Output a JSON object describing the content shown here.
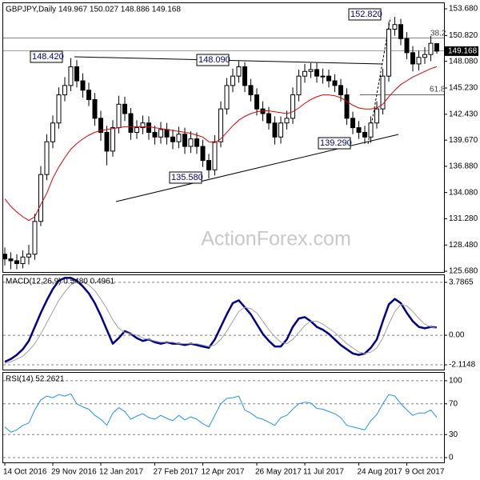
{
  "chart_data": [
    {
      "type": "candlestick",
      "title": "GBPJPY,Daily  149.967 150.027 148.886 149.168",
      "open": [
        127.5,
        127.0,
        126.8,
        126.5,
        127.2,
        127.5,
        131,
        136,
        139.5,
        141.5,
        144.5,
        145.5,
        147.5,
        146,
        145,
        144,
        142,
        140.5,
        138.5,
        141,
        143.5,
        142.5,
        140.5,
        141,
        141.5,
        140.5,
        140,
        140.8,
        140,
        139.5,
        140.3,
        139,
        139.8,
        139,
        137.5,
        136.5,
        139.5,
        143,
        145.5,
        146.5,
        147.5,
        145.5,
        144.5,
        143,
        142.5,
        141.5,
        140,
        141.5,
        142,
        144.5,
        146.5,
        147,
        147.2,
        146.5,
        146.5,
        146,
        145.5,
        144.5,
        142,
        141,
        140.5,
        140,
        141.5,
        143,
        146.5,
        151.5,
        152,
        150.5,
        149,
        147.8,
        148.5,
        148.8,
        149.967
      ],
      "high": [
        128.2,
        127.7,
        127.5,
        127.9,
        128.5,
        131.8,
        136.9,
        140.3,
        142.3,
        145.3,
        146.4,
        148.42,
        148.2,
        146.8,
        145.8,
        144.7,
        142.8,
        141.2,
        141.8,
        144.4,
        144.3,
        143.1,
        141.8,
        142.3,
        142.2,
        141.2,
        141.6,
        141.5,
        140.8,
        141.1,
        141.0,
        140.6,
        140.5,
        139.7,
        138.2,
        140.2,
        143.8,
        146.3,
        147.3,
        148.09,
        148.0,
        146.2,
        145.2,
        143.8,
        143.2,
        142.2,
        142.2,
        142.8,
        145.3,
        147.2,
        147.8,
        147.9,
        147.9,
        147.3,
        147.2,
        146.7,
        146.2,
        145.2,
        142.7,
        141.7,
        141.2,
        142.2,
        143.8,
        147.3,
        152.3,
        152.82,
        152.6,
        151.2,
        149.7,
        149.2,
        149.6,
        150.8,
        150.027
      ],
      "low": [
        126.3,
        125.9,
        125.9,
        126.0,
        126.4,
        126.9,
        130.5,
        135.4,
        138.8,
        140.9,
        143.8,
        144.9,
        145.3,
        144.2,
        143.3,
        141.2,
        139.6,
        137.0,
        137.9,
        140.4,
        141.7,
        139.7,
        139.8,
        140.3,
        139.7,
        139.2,
        139.3,
        139.2,
        138.7,
        138.8,
        138.2,
        138.3,
        138.2,
        136.8,
        135.58,
        135.9,
        138.9,
        142.4,
        144.8,
        145.8,
        144.8,
        143.8,
        142.3,
        141.7,
        140.8,
        139.2,
        139.3,
        140.8,
        141.4,
        143.8,
        145.8,
        146.3,
        145.8,
        145.7,
        145.3,
        144.8,
        143.8,
        141.3,
        140.3,
        139.8,
        139.29,
        139.4,
        140.9,
        142.4,
        145.9,
        150.8,
        149.8,
        148.3,
        147.0,
        147.1,
        147.8,
        148.1,
        148.886
      ],
      "close": [
        127.0,
        126.8,
        126.5,
        127.2,
        127.5,
        131,
        136,
        139.5,
        141.5,
        144.5,
        145.5,
        147.5,
        146,
        145,
        144,
        142,
        140.5,
        138.5,
        141,
        143.5,
        142.5,
        140.5,
        141,
        141.5,
        140.5,
        140,
        140.8,
        140,
        139.5,
        140.3,
        139,
        139.8,
        139,
        137.5,
        136.5,
        139.5,
        143,
        145.5,
        146.5,
        147.5,
        145.5,
        144.5,
        143,
        142.5,
        141.5,
        140,
        141.5,
        142,
        144.5,
        146.5,
        147,
        147.2,
        146.5,
        146.5,
        146,
        145.5,
        144.5,
        142,
        141,
        140.5,
        140,
        141.5,
        143,
        146.5,
        151.5,
        152,
        150.5,
        149,
        147.8,
        148.5,
        148.8,
        150,
        149.168
      ],
      "ma": {
        "color": "#e00000",
        "values": [
          133.4,
          132.6,
          132.0,
          131.5,
          131.1,
          131.5,
          132.8,
          134.0,
          135.6,
          136.8,
          137.8,
          138.7,
          139.3,
          139.8,
          140.2,
          140.5,
          140.7,
          140.8,
          140.9,
          141.0,
          141.1,
          141.1,
          141.1,
          141.1,
          141.1,
          141.0,
          140.9,
          140.8,
          140.7,
          140.6,
          140.5,
          140.4,
          140.2,
          140.0,
          139.5,
          139.4,
          139.8,
          140.5,
          141.2,
          141.8,
          142.2,
          142.5,
          142.7,
          142.8,
          142.8,
          142.7,
          142.6,
          142.5,
          142.7,
          143.1,
          143.6,
          144.0,
          144.3,
          144.5,
          144.5,
          144.4,
          144.2,
          143.8,
          143.4,
          143.1,
          143.0,
          143.0,
          143.1,
          143.5,
          144.3,
          145.0,
          145.6,
          146.0,
          146.4,
          146.7,
          147.0,
          147.3,
          147.5
        ]
      },
      "up_color": "#ffffff",
      "down_color": "#000000",
      "ylim": [
        125.6,
        154.28
      ],
      "yticks": [
        {
          "value": 153.68,
          "label": "153.680"
        },
        {
          "value": 150.82,
          "label": "150.820"
        },
        {
          "value": 148.08,
          "label": "148.080"
        },
        {
          "value": 145.23,
          "label": "145.230"
        },
        {
          "value": 142.43,
          "label": "142.430"
        },
        {
          "value": 139.67,
          "label": "139.670"
        },
        {
          "value": 136.88,
          "label": "136.880"
        },
        {
          "value": 134.08,
          "label": "134.080"
        },
        {
          "value": 131.28,
          "label": "131.280"
        },
        {
          "value": 128.48,
          "label": "128.480"
        },
        {
          "value": 125.68,
          "label": "125.680"
        }
      ],
      "last_price": {
        "value": 149.168,
        "label": "149.168"
      },
      "annotations": [
        "152.820",
        "148.420",
        "148.090",
        "135.580",
        "139.290",
        "38.2",
        "61.8"
      ],
      "watermark": "ActionForex.com",
      "xticks": [
        {
          "value": 0,
          "label": "14 Oct 2016"
        },
        {
          "value": 8,
          "label": "29 Nov 2016"
        },
        {
          "value": 16,
          "label": "12 Jan 2017"
        },
        {
          "value": 25,
          "label": "27 Feb 2017"
        },
        {
          "value": 33,
          "label": "12 Apr 2017"
        },
        {
          "value": 42,
          "label": "26 May 2017"
        },
        {
          "value": 50,
          "label": "11 Jul 2017"
        },
        {
          "value": 59,
          "label": "24 Aug 2017"
        },
        {
          "value": 67,
          "label": "9 Oct 2017"
        }
      ]
    },
    {
      "type": "line",
      "title": "MACD(12,26,9) 0.5480 0.4961",
      "series": [
        {
          "color": "#00008b",
          "width": 2.5,
          "values": [
            -1.9,
            -1.7,
            -1.4,
            -1.0,
            -0.4,
            0.6,
            1.6,
            2.5,
            3.3,
            3.9,
            4.1,
            4.1,
            3.9,
            3.5,
            3.0,
            2.3,
            1.4,
            0.4,
            -0.6,
            -0.2,
            0.3,
            0.1,
            -0.2,
            -0.4,
            -0.3,
            -0.5,
            -0.6,
            -0.5,
            -0.6,
            -0.6,
            -0.7,
            -0.6,
            -0.7,
            -0.8,
            -0.9,
            -0.3,
            0.6,
            1.5,
            2.3,
            2.5,
            2.0,
            1.5,
            0.8,
            0.1,
            -0.4,
            -0.8,
            -0.8,
            -0.3,
            0.6,
            1.2,
            1.3,
            1.0,
            0.6,
            0.4,
            0.1,
            -0.3,
            -0.7,
            -1.0,
            -1.3,
            -1.4,
            -1.3,
            -0.9,
            -0.3,
            1.0,
            2.2,
            2.6,
            2.3,
            1.6,
            1.0,
            0.6,
            0.5,
            0.6,
            0.548
          ]
        },
        {
          "color": "#a0a0a0",
          "width": 1,
          "values": [
            -2.0,
            -1.9,
            -1.7,
            -1.5,
            -1.1,
            -0.6,
            0.1,
            0.9,
            1.7,
            2.5,
            3.1,
            3.6,
            3.8,
            3.8,
            3.6,
            3.2,
            2.6,
            1.9,
            1.1,
            0.5,
            0.2,
            0.1,
            0.0,
            -0.2,
            -0.3,
            -0.4,
            -0.5,
            -0.5,
            -0.5,
            -0.6,
            -0.6,
            -0.6,
            -0.6,
            -0.7,
            -0.8,
            -0.7,
            -0.3,
            0.3,
            1.0,
            1.7,
            2.0,
            1.9,
            1.6,
            1.0,
            0.4,
            -0.1,
            -0.5,
            -0.6,
            -0.3,
            0.2,
            0.7,
            1.0,
            1.0,
            0.8,
            0.5,
            0.2,
            -0.2,
            -0.6,
            -0.9,
            -1.2,
            -1.3,
            -1.2,
            -0.9,
            -0.2,
            0.8,
            1.7,
            2.2,
            2.1,
            1.7,
            1.2,
            0.8,
            0.6,
            0.4961
          ]
        }
      ],
      "ylim": [
        -2.455,
        4.297
      ],
      "yticks": [
        3.7865,
        {
          "value": 0,
          "label": "0.00"
        },
        -2.1148
      ],
      "grid": true
    },
    {
      "type": "line",
      "title": "RSI(14) 52.2621",
      "series": [
        {
          "color": "#1e90ff",
          "width": 1,
          "values": [
            40,
            33,
            36,
            42,
            45,
            62,
            75,
            80,
            78,
            82,
            80,
            83,
            70,
            66,
            63,
            55,
            50,
            42,
            58,
            65,
            60,
            50,
            54,
            57,
            52,
            50,
            55,
            51,
            48,
            55,
            49,
            53,
            50,
            44,
            40,
            55,
            70,
            77,
            78,
            80,
            62,
            58,
            52,
            50,
            46,
            42,
            52,
            55,
            63,
            70,
            72,
            71,
            64,
            63,
            60,
            57,
            52,
            42,
            40,
            38,
            36,
            48,
            56,
            70,
            82,
            80,
            70,
            62,
            55,
            58,
            58,
            62,
            52.2621
          ]
        }
      ],
      "ylim": [
        -6.2,
        110.3
      ],
      "yticks": [
        100,
        70,
        30,
        0
      ],
      "grid": true
    }
  ]
}
